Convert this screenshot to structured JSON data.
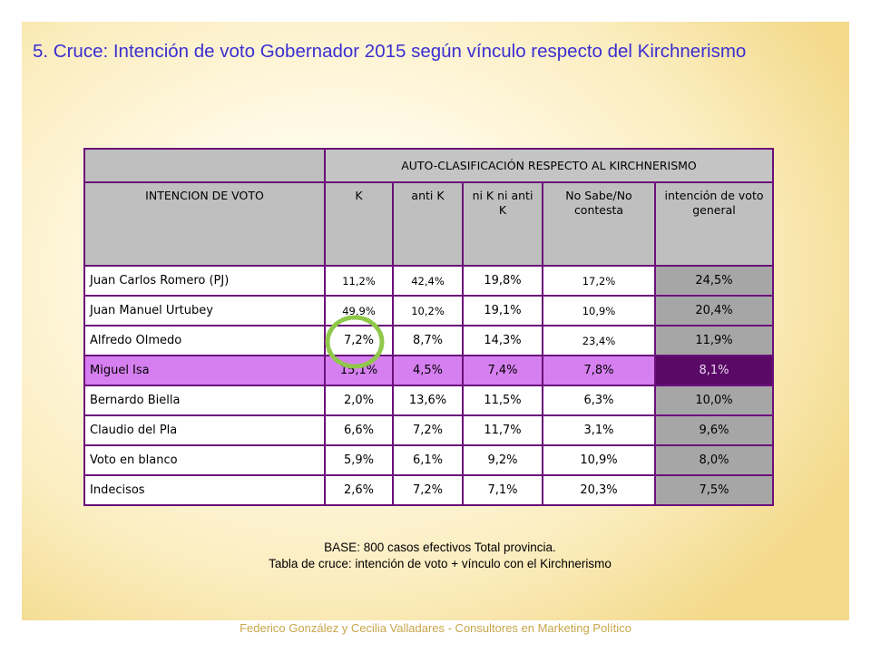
{
  "title": "5. Cruce: Intención de voto Gobernador 2015 según vínculo respecto del Kirchnerismo",
  "table": {
    "super_header": "AUTO-CLASIFICACIÓN RESPECTO AL KIRCHNERISMO",
    "columns": [
      "INTENCION DE VOTO",
      "K",
      "anti K",
      "ni K ni anti K",
      "No Sabe/No contesta",
      "intención de voto general"
    ],
    "rows": [
      {
        "name": "Juan Carlos Romero (PJ)",
        "values": [
          "11,2%",
          "42,4%",
          "19,8%",
          "17,2%",
          "24,5%"
        ]
      },
      {
        "name": "Juan Manuel Urtubey",
        "values": [
          "49,9%",
          "10,2%",
          "19,1%",
          "10,9%",
          "20,4%"
        ]
      },
      {
        "name": "Alfredo Olmedo",
        "values": [
          "7,2%",
          "8,7%",
          "14,3%",
          "23,4%",
          "11,9%"
        ]
      },
      {
        "name": "Miguel Isa",
        "values": [
          "15,1%",
          "4,5%",
          "7,4%",
          "7,8%",
          "8,1%"
        ]
      },
      {
        "name": "Bernardo Biella",
        "values": [
          "2,0%",
          "13,6%",
          "11,5%",
          "6,3%",
          "10,0%"
        ]
      },
      {
        "name": "Claudio del Pla",
        "values": [
          "6,6%",
          "7,2%",
          "11,7%",
          "3,1%",
          "9,6%"
        ]
      },
      {
        "name": "Voto en blanco",
        "values": [
          "5,9%",
          "6,1%",
          "9,2%",
          "10,9%",
          "8,0%"
        ]
      },
      {
        "name": "Indecisos",
        "values": [
          "2,6%",
          "7,2%",
          "7,1%",
          "20,3%",
          "7,5%"
        ]
      }
    ]
  },
  "footnote": {
    "line1": "BASE: 800 casos efectivos Total provincia.",
    "line2": "Tabla de cruce: intención de voto + vínculo con el Kirchnerismo"
  },
  "credit": "Federico González y Cecilia Valladares - Consultores en Marketing Político",
  "colors": {
    "title": "#3b2fd0",
    "border": "#6b0f7a",
    "highlight_row": "#d67ff0",
    "highlight_general": "#5a0a66",
    "general_column": "#a6a6a6",
    "circle_mark": "#8fc84a",
    "credit": "#c8a64a"
  }
}
